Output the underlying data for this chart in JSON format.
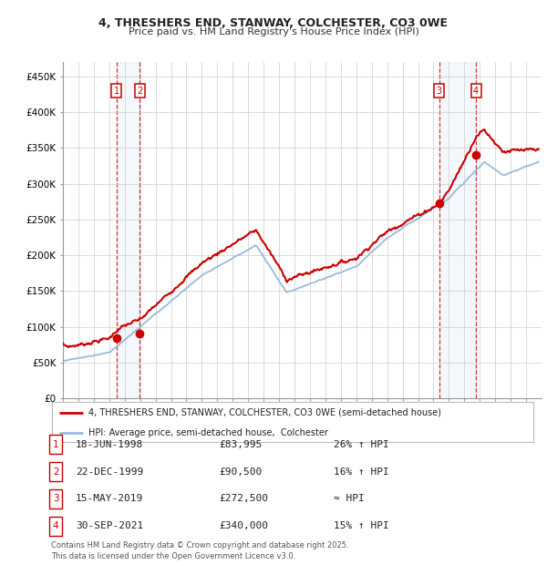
{
  "title_line1": "4, THRESHERS END, STANWAY, COLCHESTER, CO3 0WE",
  "title_line2": "Price paid vs. HM Land Registry's House Price Index (HPI)",
  "ylim": [
    0,
    470000
  ],
  "yticks": [
    0,
    50000,
    100000,
    150000,
    200000,
    250000,
    300000,
    350000,
    400000,
    450000
  ],
  "ytick_labels": [
    "£0",
    "£50K",
    "£100K",
    "£150K",
    "£200K",
    "£250K",
    "£300K",
    "£350K",
    "£400K",
    "£450K"
  ],
  "xlim_start": 1995.0,
  "xlim_end": 2026.0,
  "background_color": "#ffffff",
  "grid_color": "#cccccc",
  "line1_color": "#cc0000",
  "line2_color": "#99bbdd",
  "transaction_color": "#cc0000",
  "transactions": [
    {
      "num": 1,
      "date_str": "18-JUN-1998",
      "date_x": 1998.46,
      "price": 83995,
      "pct": "26% ↑ HPI"
    },
    {
      "num": 2,
      "date_str": "22-DEC-1999",
      "date_x": 1999.97,
      "price": 90500,
      "pct": "16% ↑ HPI"
    },
    {
      "num": 3,
      "date_str": "15-MAY-2019",
      "date_x": 2019.37,
      "price": 272500,
      "pct": "≈ HPI"
    },
    {
      "num": 4,
      "date_str": "30-SEP-2021",
      "date_x": 2021.75,
      "price": 340000,
      "pct": "15% ↑ HPI"
    }
  ],
  "legend_line1": "4, THRESHERS END, STANWAY, COLCHESTER, CO3 0WE (semi-detached house)",
  "legend_line2": "HPI: Average price, semi-detached house,  Colchester",
  "footer": "Contains HM Land Registry data © Crown copyright and database right 2025.\nThis data is licensed under the Open Government Licence v3.0."
}
